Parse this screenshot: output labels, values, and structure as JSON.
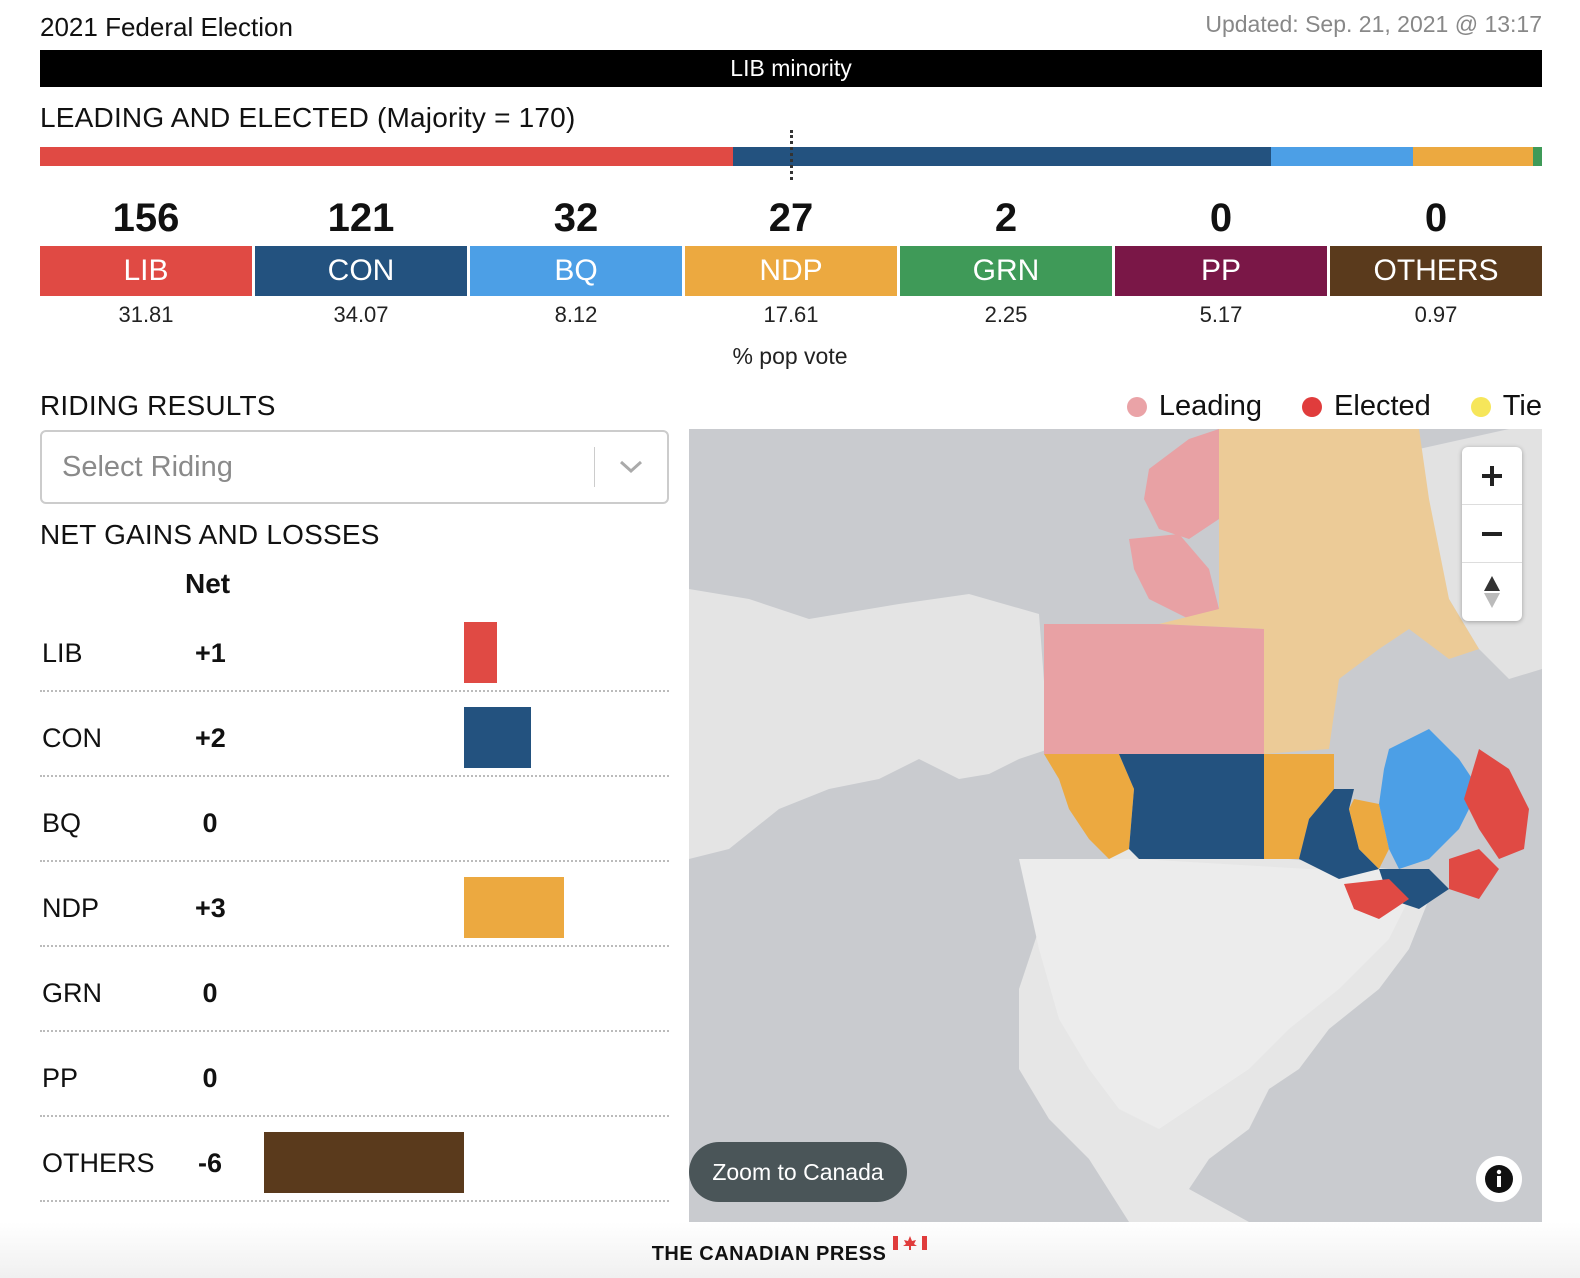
{
  "header": {
    "title": "2021 Federal Election",
    "updated": "Updated: Sep. 21, 2021 @ 13:17",
    "status": "LIB minority",
    "leading_title": "LEADING AND ELECTED (Majority = 170)"
  },
  "parties": [
    {
      "name": "LIB",
      "seats": "156",
      "pop": "31.81",
      "color": "#e04a44"
    },
    {
      "name": "CON",
      "seats": "121",
      "pop": "34.07",
      "color": "#23527f"
    },
    {
      "name": "BQ",
      "seats": "32",
      "pop": "8.12",
      "color": "#4c9fe6"
    },
    {
      "name": "NDP",
      "seats": "27",
      "pop": "17.61",
      "color": "#eca940"
    },
    {
      "name": "GRN",
      "seats": "2",
      "pop": "2.25",
      "color": "#3f9a58"
    },
    {
      "name": "PP",
      "seats": "0",
      "pop": "5.17",
      "color": "#7a1747"
    },
    {
      "name": "OTHERS",
      "seats": "0",
      "pop": "0.97",
      "color": "#5a3a1c"
    }
  ],
  "pop_vote_label": "% pop vote",
  "riding": {
    "title": "RIDING RESULTS",
    "placeholder": "Select Riding"
  },
  "net": {
    "title": "NET GAINS AND LOSSES",
    "header": "Net",
    "rows": [
      {
        "name": "LIB",
        "net": "+1",
        "value": 1,
        "color": "#e04a44"
      },
      {
        "name": "CON",
        "net": "+2",
        "value": 2,
        "color": "#23527f"
      },
      {
        "name": "BQ",
        "net": "0",
        "value": 0,
        "color": "#4c9fe6"
      },
      {
        "name": "NDP",
        "net": "+3",
        "value": 3,
        "color": "#eca940"
      },
      {
        "name": "GRN",
        "net": "0",
        "value": 0,
        "color": "#3f9a58"
      },
      {
        "name": "PP",
        "net": "0",
        "value": 0,
        "color": "#7a1747"
      },
      {
        "name": "OTHERS",
        "net": "-6",
        "value": -6,
        "color": "#5a3a1c"
      }
    ]
  },
  "legend": [
    {
      "label": "Leading",
      "color": "#eaa3a7"
    },
    {
      "label": "Elected",
      "color": "#e03c3c"
    },
    {
      "label": "Tie",
      "color": "#f6e65a"
    }
  ],
  "map": {
    "zoom_to_canada": "Zoom to Canada",
    "zoom_in_icon": "plus-icon",
    "zoom_out_icon": "minus-icon",
    "compass_icon": "compass-icon",
    "info_icon": "info-icon"
  },
  "footer": {
    "brand": "THE CANADIAN PRESS"
  }
}
